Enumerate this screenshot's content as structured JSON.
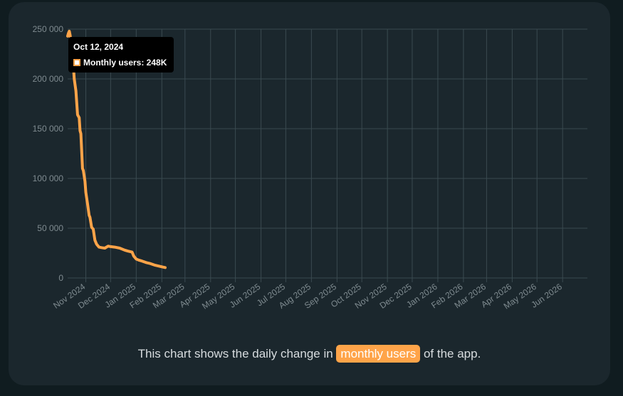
{
  "caption": {
    "before": "This chart shows the daily change in ",
    "highlight": "monthly users",
    "after": " of the app."
  },
  "tooltip": {
    "title": "Oct 12, 2024",
    "label": "Monthly users: 248K"
  },
  "colors": {
    "series": "#ffa449",
    "grid": "#3a4a50",
    "tick": "#7f8b90",
    "card": "#1b272d",
    "background": "#101c20"
  },
  "chart_data": {
    "type": "line",
    "title": "",
    "xlabel": "",
    "ylabel": "",
    "xlim": [
      "2024-10-10",
      "2026-07-01"
    ],
    "ylim": [
      0,
      250000
    ],
    "grid": true,
    "y_ticks": [
      0,
      50000,
      100000,
      150000,
      200000,
      250000
    ],
    "y_tick_labels": [
      "0",
      "50 000",
      "100 000",
      "150 000",
      "200 000",
      "250 000"
    ],
    "x_tick_labels": [
      "Nov 2024",
      "Dec 2024",
      "Jan 2025",
      "Feb 2025",
      "Mar 2025",
      "Apr 2025",
      "May 2025",
      "Jun 2025",
      "Jul 2025",
      "Aug 2025",
      "Sep 2025",
      "Oct 2025",
      "Nov 2025",
      "Dec 2025",
      "Jan 2026",
      "Feb 2026",
      "Mar 2026",
      "Apr 2026",
      "May 2026",
      "Jun 2026"
    ],
    "series": [
      {
        "name": "Monthly users",
        "x": [
          "2024-10-10",
          "2024-10-11",
          "2024-10-12",
          "2024-10-13",
          "2024-10-15",
          "2024-10-17",
          "2024-10-18",
          "2024-10-20",
          "2024-10-22",
          "2024-10-24",
          "2024-10-25",
          "2024-10-26",
          "2024-10-28",
          "2024-10-29",
          "2024-10-31",
          "2024-11-01",
          "2024-11-03",
          "2024-11-05",
          "2024-11-06",
          "2024-11-08",
          "2024-11-10",
          "2024-11-12",
          "2024-11-14",
          "2024-11-17",
          "2024-11-20",
          "2024-11-24",
          "2024-11-28",
          "2024-12-01",
          "2024-12-06",
          "2024-12-12",
          "2024-12-18",
          "2024-12-22",
          "2024-12-27",
          "2024-12-29",
          "2025-01-01",
          "2025-01-04",
          "2025-01-08",
          "2025-01-13",
          "2025-01-18",
          "2025-01-23",
          "2025-01-28",
          "2025-02-02",
          "2025-02-05"
        ],
        "values": [
          243000,
          246000,
          248000,
          244000,
          230000,
          212000,
          200000,
          188000,
          164000,
          161000,
          148000,
          145000,
          110000,
          108000,
          97000,
          86000,
          75000,
          63000,
          61000,
          51000,
          49000,
          38000,
          34000,
          31000,
          30500,
          30000,
          32000,
          31500,
          31000,
          30000,
          28000,
          27000,
          26000,
          22000,
          19000,
          18000,
          17000,
          15500,
          14500,
          13000,
          12000,
          11000,
          10500
        ]
      }
    ]
  }
}
